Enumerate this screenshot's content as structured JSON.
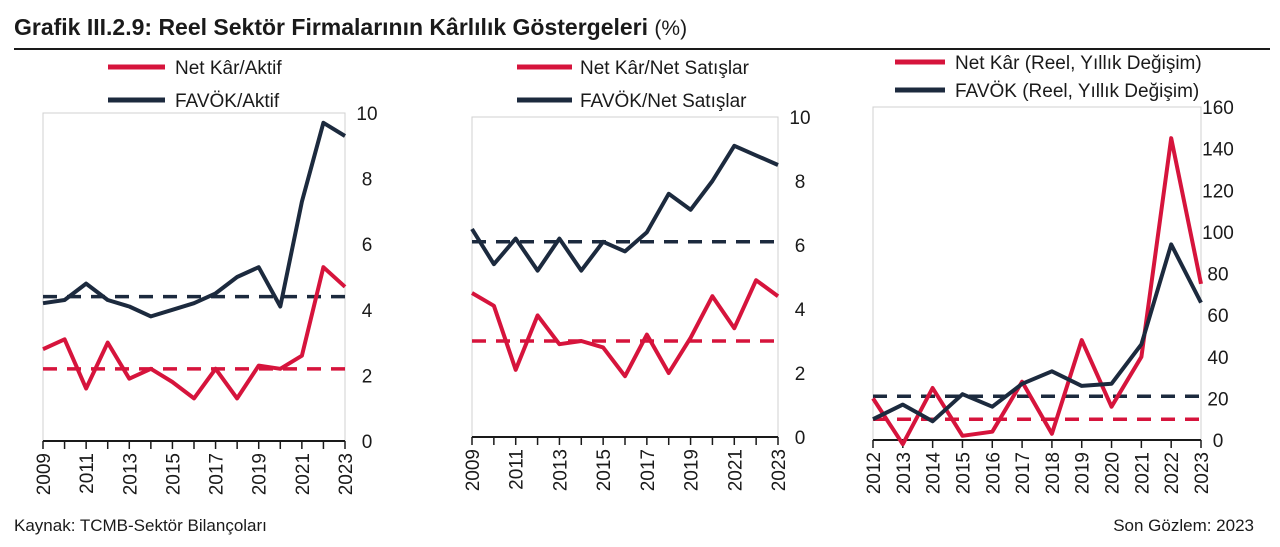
{
  "title": "Grafik III.2.9: Reel Sektör Firmalarının Kârlılık Göstergeleri",
  "title_unit": "(%)",
  "source": "Kaynak: TCMB-Sektör Bilançoları",
  "last_observation": "Son Gözlem: 2023",
  "colors": {
    "red": "#d6143c",
    "navy": "#1c2a3e",
    "axis": "#1a1a1a",
    "frame": "#d0d0d0"
  },
  "chart_data": [
    {
      "type": "line",
      "x": [
        2009,
        2010,
        2011,
        2012,
        2013,
        2014,
        2015,
        2016,
        2017,
        2018,
        2019,
        2020,
        2021,
        2022,
        2023
      ],
      "tick_labels": [
        "2009",
        "2011",
        "2013",
        "2015",
        "2017",
        "2019",
        "2021",
        "2023"
      ],
      "ylim": [
        0,
        10
      ],
      "yticks": [
        "0",
        "2",
        "4",
        "6",
        "8",
        "10"
      ],
      "series": [
        {
          "name": "Net Kâr/Aktif",
          "color": "#d6143c",
          "values": [
            2.8,
            3.1,
            1.6,
            3.0,
            1.9,
            2.2,
            1.8,
            1.3,
            2.2,
            1.3,
            2.3,
            2.2,
            2.6,
            5.3,
            4.7
          ]
        },
        {
          "name": "FAVÖK/Aktif",
          "color": "#1c2a3e",
          "values": [
            4.2,
            4.3,
            4.8,
            4.3,
            4.1,
            3.8,
            4.0,
            4.2,
            4.5,
            5.0,
            5.3,
            4.1,
            7.3,
            9.7,
            9.3
          ]
        }
      ],
      "reference_lines": [
        {
          "series": "Net Kâr/Aktif",
          "value": 2.2,
          "color": "#d6143c"
        },
        {
          "series": "FAVÖK/Aktif",
          "value": 4.4,
          "color": "#1c2a3e"
        }
      ]
    },
    {
      "type": "line",
      "x": [
        2009,
        2010,
        2011,
        2012,
        2013,
        2014,
        2015,
        2016,
        2017,
        2018,
        2019,
        2020,
        2021,
        2022,
        2023
      ],
      "tick_labels": [
        "2009",
        "2011",
        "2013",
        "2015",
        "2017",
        "2019",
        "2021",
        "2023"
      ],
      "ylim": [
        0,
        10
      ],
      "yticks": [
        "0",
        "2",
        "4",
        "6",
        "8",
        "10"
      ],
      "series": [
        {
          "name": "Net Kâr/Net Satışlar",
          "color": "#d6143c",
          "values": [
            4.5,
            4.1,
            2.1,
            3.8,
            2.9,
            3.0,
            2.8,
            1.9,
            3.2,
            2.0,
            3.1,
            4.4,
            3.4,
            4.9,
            4.4
          ]
        },
        {
          "name": "FAVÖK/Net Satışlar",
          "color": "#1c2a3e",
          "values": [
            6.5,
            5.4,
            6.2,
            5.2,
            6.2,
            5.2,
            6.1,
            5.8,
            6.4,
            7.6,
            7.1,
            8.0,
            9.1,
            8.8,
            8.5
          ]
        }
      ],
      "reference_lines": [
        {
          "series": "Net Kâr/Net Satışlar",
          "value": 3.0,
          "color": "#d6143c"
        },
        {
          "series": "FAVÖK/Net Satışlar",
          "value": 6.1,
          "color": "#1c2a3e"
        }
      ]
    },
    {
      "type": "line",
      "x": [
        2012,
        2013,
        2014,
        2015,
        2016,
        2017,
        2018,
        2019,
        2020,
        2021,
        2022,
        2023
      ],
      "tick_labels": [
        "2012",
        "2013",
        "2014",
        "2015",
        "2016",
        "2017",
        "2018",
        "2019",
        "2020",
        "2021",
        "2022",
        "2023"
      ],
      "ylim": [
        0,
        160
      ],
      "yticks": [
        "0",
        "20",
        "40",
        "60",
        "80",
        "100",
        "120",
        "140",
        "160"
      ],
      "series": [
        {
          "name": "Net Kâr (Reel, Yıllık Değişim)",
          "color": "#d6143c",
          "values": [
            20,
            -2,
            25,
            2,
            4,
            28,
            3,
            48,
            16,
            40,
            145,
            75
          ]
        },
        {
          "name": "FAVÖK (Reel, Yıllık Değişim)",
          "color": "#1c2a3e",
          "values": [
            10,
            17,
            9,
            22,
            16,
            27,
            33,
            26,
            27,
            46,
            94,
            66
          ]
        }
      ],
      "reference_lines": [
        {
          "series": "Net Kâr (Reel, Yıllık Değişim)",
          "value": 10,
          "color": "#d6143c"
        },
        {
          "series": "FAVÖK (Reel, Yıllık Değişim)",
          "value": 21,
          "color": "#1c2a3e"
        }
      ]
    }
  ]
}
